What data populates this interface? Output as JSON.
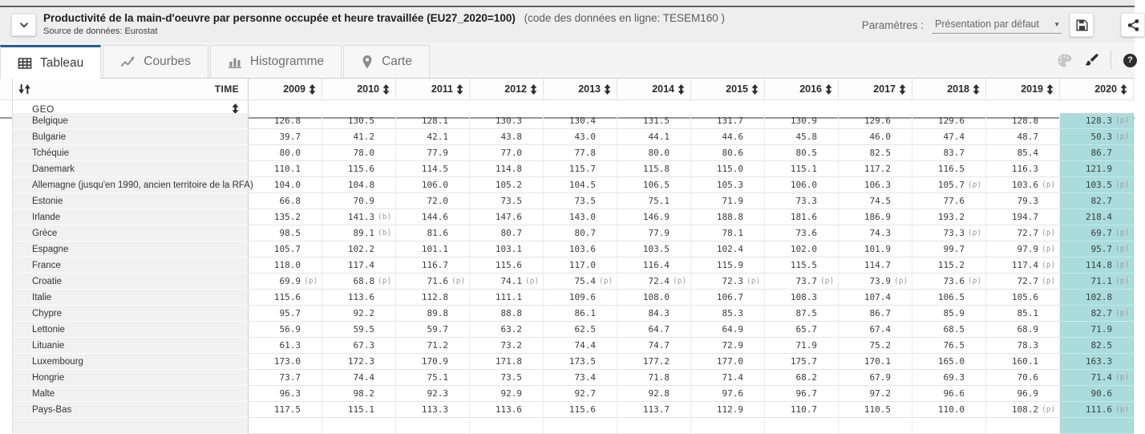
{
  "header": {
    "title": "Productivité de la main-d'oeuvre par personne occupée et heure travaillée (EU27_2020=100)",
    "code": "(code des données en ligne: TESEM160 )",
    "source_label": "Source de données:",
    "source_value": "Eurostat",
    "params_label": "Paramètres :",
    "params_value": "Présentation par défaut",
    "caret_glyph": "▼",
    "help_glyph": "?"
  },
  "tabs": [
    {
      "id": "tableau",
      "label": "Tableau",
      "icon": "table-icon",
      "active": true
    },
    {
      "id": "courbes",
      "label": "Courbes",
      "icon": "line-chart-icon",
      "active": false
    },
    {
      "id": "histogramme",
      "label": "Histogramme",
      "icon": "bar-chart-icon",
      "active": false
    },
    {
      "id": "carte",
      "label": "Carte",
      "icon": "map-pin-icon",
      "active": false
    }
  ],
  "colors": {
    "accent_blue": "#1d5fa5",
    "highlight_teal": "#aadcdc"
  },
  "table": {
    "time_label": "TIME",
    "geo_label": "GEO",
    "years": [
      "2009",
      "2010",
      "2011",
      "2012",
      "2013",
      "2014",
      "2015",
      "2016",
      "2017",
      "2018",
      "2019",
      "2020"
    ],
    "highlight_year": "2020",
    "rows": [
      {
        "geo": "Belgique",
        "values": [
          "126.8",
          "130.5",
          "128.1",
          "130.3",
          "130.4",
          "131.5",
          "131.7",
          "130.9",
          "129.6",
          "129.6",
          "128.8",
          "128.3 (p)"
        ]
      },
      {
        "geo": "Bulgarie",
        "values": [
          "39.7",
          "41.2",
          "42.1",
          "43.8",
          "43.0",
          "44.1",
          "44.6",
          "45.8",
          "46.0",
          "47.4",
          "48.7",
          "50.3 (p)"
        ]
      },
      {
        "geo": "Tchéquie",
        "values": [
          "80.0",
          "78.0",
          "77.9",
          "77.0",
          "77.8",
          "80.0",
          "80.6",
          "80.5",
          "82.5",
          "83.7",
          "85.4",
          "86.7"
        ]
      },
      {
        "geo": "Danemark",
        "values": [
          "110.1",
          "115.6",
          "114.5",
          "114.8",
          "115.7",
          "115.8",
          "115.0",
          "115.1",
          "117.2",
          "116.5",
          "116.3",
          "121.9"
        ]
      },
      {
        "geo": "Allemagne (jusqu'en 1990, ancien territoire de la RFA)",
        "values": [
          "104.0",
          "104.8",
          "106.0",
          "105.2",
          "104.5",
          "106.5",
          "105.3",
          "106.0",
          "106.3",
          "105.7 (p)",
          "103.6 (p)",
          "103.5 (p)"
        ]
      },
      {
        "geo": "Estonie",
        "values": [
          "66.8",
          "70.9",
          "72.0",
          "73.5",
          "73.5",
          "75.1",
          "71.9",
          "73.3",
          "74.5",
          "77.6",
          "79.3",
          "82.7"
        ]
      },
      {
        "geo": "Irlande",
        "values": [
          "135.2",
          "141.3 (b)",
          "144.6",
          "147.6",
          "143.0",
          "146.9",
          "188.8",
          "181.6",
          "186.9",
          "193.2",
          "194.7",
          "218.4"
        ]
      },
      {
        "geo": "Grèce",
        "values": [
          "98.5",
          "89.1 (b)",
          "81.6",
          "80.7",
          "80.7",
          "77.9",
          "78.1",
          "73.6",
          "74.3",
          "73.3 (p)",
          "72.7 (p)",
          "69.7 (p)"
        ]
      },
      {
        "geo": "Espagne",
        "values": [
          "105.7",
          "102.2",
          "101.1",
          "103.1",
          "103.6",
          "103.5",
          "102.4",
          "102.0",
          "101.9",
          "99.7",
          "97.9 (p)",
          "95.7 (p)"
        ]
      },
      {
        "geo": "France",
        "values": [
          "118.0",
          "117.4",
          "116.7",
          "115.6",
          "117.0",
          "116.4",
          "115.9",
          "115.5",
          "114.7",
          "115.2",
          "117.4 (p)",
          "114.8 (p)"
        ]
      },
      {
        "geo": "Croatie",
        "values": [
          "69.9 (p)",
          "68.8 (p)",
          "71.6 (p)",
          "74.1 (p)",
          "75.4 (p)",
          "72.4 (p)",
          "72.3 (p)",
          "73.7 (p)",
          "73.9 (p)",
          "73.6 (p)",
          "72.7 (p)",
          "71.1 (p)"
        ]
      },
      {
        "geo": "Italie",
        "values": [
          "115.6",
          "113.6",
          "112.8",
          "111.1",
          "109.6",
          "108.0",
          "106.7",
          "108.3",
          "107.4",
          "106.5",
          "105.6",
          "102.8"
        ]
      },
      {
        "geo": "Chypre",
        "values": [
          "95.7",
          "92.2",
          "89.8",
          "88.8",
          "86.1",
          "84.3",
          "85.3",
          "87.5",
          "86.7",
          "85.9",
          "85.1",
          "82.7 (p)"
        ]
      },
      {
        "geo": "Lettonie",
        "values": [
          "56.9",
          "59.5",
          "59.7",
          "63.2",
          "62.5",
          "64.7",
          "64.9",
          "65.7",
          "67.4",
          "68.5",
          "68.9",
          "71.9"
        ]
      },
      {
        "geo": "Lituanie",
        "values": [
          "61.3",
          "67.3",
          "71.2",
          "73.2",
          "74.4",
          "74.7",
          "72.9",
          "71.9",
          "75.2",
          "76.5",
          "78.3",
          "82.5"
        ]
      },
      {
        "geo": "Luxembourg",
        "values": [
          "173.0",
          "172.3",
          "170.9",
          "171.8",
          "173.5",
          "177.2",
          "177.0",
          "175.7",
          "170.1",
          "165.0",
          "160.1",
          "163.3"
        ]
      },
      {
        "geo": "Hongrie",
        "values": [
          "73.7",
          "74.4",
          "75.1",
          "73.5",
          "73.4",
          "71.8",
          "71.4",
          "68.2",
          "67.9",
          "69.3",
          "70.6",
          "71.4 (p)"
        ]
      },
      {
        "geo": "Malte",
        "values": [
          "96.3",
          "98.2",
          "92.3",
          "92.9",
          "92.7",
          "92.8",
          "97.6",
          "96.7",
          "97.2",
          "96.6",
          "96.9",
          "90.6"
        ]
      },
      {
        "geo": "Pays-Bas",
        "values": [
          "117.5",
          "115.1",
          "113.3",
          "113.6",
          "115.6",
          "113.7",
          "112.9",
          "110.7",
          "110.5",
          "110.0",
          "108.2 (p)",
          "111.6 (p)"
        ]
      }
    ]
  }
}
